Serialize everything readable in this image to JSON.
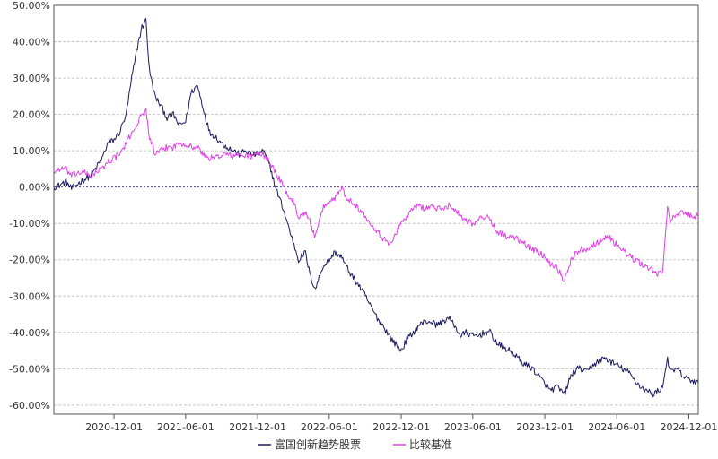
{
  "chart_data": {
    "type": "line",
    "grid": true,
    "legend_position": "bottom-center",
    "ylim": [
      -62.5,
      50
    ],
    "xlim": [
      "2020-07-01",
      "2024-12-25"
    ],
    "yticks": [
      50,
      40,
      30,
      20,
      10,
      0,
      -10,
      -20,
      -30,
      -40,
      -50,
      -60
    ],
    "ytick_labels": [
      "50.00%",
      "40.00%",
      "30.00%",
      "20.00%",
      "10.00%",
      "0.00%",
      "-10.00%",
      "-20.00%",
      "-30.00%",
      "-40.00%",
      "-50.00%",
      "-60.00%"
    ],
    "xticks": [
      "2020-12-01",
      "2021-06-01",
      "2021-12-01",
      "2022-06-01",
      "2022-12-01",
      "2023-06-01",
      "2023-12-01",
      "2024-06-01",
      "2024-12-01"
    ],
    "series": [
      {
        "name": "富国创新趋势股票",
        "color": "#1a1a5e",
        "points": [
          [
            "2020-07-01",
            0
          ],
          [
            "2020-07-15",
            0.5
          ],
          [
            "2020-08-01",
            1.5
          ],
          [
            "2020-08-15",
            -0.5
          ],
          [
            "2020-09-01",
            1
          ],
          [
            "2020-09-15",
            2
          ],
          [
            "2020-10-01",
            3
          ],
          [
            "2020-10-15",
            5
          ],
          [
            "2020-11-01",
            8
          ],
          [
            "2020-11-15",
            12
          ],
          [
            "2020-12-01",
            13
          ],
          [
            "2020-12-15",
            15
          ],
          [
            "2021-01-01",
            20
          ],
          [
            "2021-01-15",
            30
          ],
          [
            "2021-02-01",
            40
          ],
          [
            "2021-02-10",
            44
          ],
          [
            "2021-02-20",
            46
          ],
          [
            "2021-03-01",
            32
          ],
          [
            "2021-03-15",
            25
          ],
          [
            "2021-04-01",
            22
          ],
          [
            "2021-04-15",
            19
          ],
          [
            "2021-05-01",
            20
          ],
          [
            "2021-05-15",
            17
          ],
          [
            "2021-06-01",
            18
          ],
          [
            "2021-06-15",
            26
          ],
          [
            "2021-07-01",
            28
          ],
          [
            "2021-07-15",
            22
          ],
          [
            "2021-08-01",
            15
          ],
          [
            "2021-08-15",
            14
          ],
          [
            "2021-09-01",
            12
          ],
          [
            "2021-09-15",
            11
          ],
          [
            "2021-10-01",
            10
          ],
          [
            "2021-10-15",
            9
          ],
          [
            "2021-11-01",
            10
          ],
          [
            "2021-11-15",
            9
          ],
          [
            "2021-12-01",
            9
          ],
          [
            "2021-12-15",
            10
          ],
          [
            "2022-01-01",
            6
          ],
          [
            "2022-01-15",
            0
          ],
          [
            "2022-02-01",
            -5
          ],
          [
            "2022-02-15",
            -10
          ],
          [
            "2022-03-01",
            -15
          ],
          [
            "2022-03-15",
            -20
          ],
          [
            "2022-04-01",
            -18
          ],
          [
            "2022-04-15",
            -25
          ],
          [
            "2022-04-27",
            -28
          ],
          [
            "2022-05-15",
            -22
          ],
          [
            "2022-06-01",
            -20
          ],
          [
            "2022-06-15",
            -18
          ],
          [
            "2022-07-01",
            -19
          ],
          [
            "2022-07-15",
            -22
          ],
          [
            "2022-08-01",
            -25
          ],
          [
            "2022-08-15",
            -27
          ],
          [
            "2022-09-01",
            -30
          ],
          [
            "2022-09-15",
            -33
          ],
          [
            "2022-10-01",
            -36
          ],
          [
            "2022-10-15",
            -38
          ],
          [
            "2022-11-01",
            -41
          ],
          [
            "2022-11-15",
            -43
          ],
          [
            "2022-12-01",
            -45
          ],
          [
            "2022-12-15",
            -42
          ],
          [
            "2023-01-01",
            -40
          ],
          [
            "2023-01-15",
            -38
          ],
          [
            "2023-02-01",
            -37
          ],
          [
            "2023-02-15",
            -37
          ],
          [
            "2023-03-01",
            -38
          ],
          [
            "2023-03-15",
            -37
          ],
          [
            "2023-04-01",
            -36
          ],
          [
            "2023-04-15",
            -38
          ],
          [
            "2023-05-01",
            -41
          ],
          [
            "2023-05-15",
            -40
          ],
          [
            "2023-06-01",
            -41
          ],
          [
            "2023-06-15",
            -41
          ],
          [
            "2023-07-01",
            -40
          ],
          [
            "2023-07-15",
            -40
          ],
          [
            "2023-08-01",
            -43
          ],
          [
            "2023-08-15",
            -44
          ],
          [
            "2023-09-01",
            -45
          ],
          [
            "2023-09-15",
            -46
          ],
          [
            "2023-10-01",
            -48
          ],
          [
            "2023-10-15",
            -49
          ],
          [
            "2023-11-01",
            -50
          ],
          [
            "2023-11-15",
            -52
          ],
          [
            "2023-12-01",
            -54
          ],
          [
            "2023-12-15",
            -56
          ],
          [
            "2024-01-01",
            -55
          ],
          [
            "2024-01-20",
            -57
          ],
          [
            "2024-02-05",
            -52
          ],
          [
            "2024-02-20",
            -50
          ],
          [
            "2024-03-01",
            -50
          ],
          [
            "2024-03-15",
            -51
          ],
          [
            "2024-04-01",
            -49
          ],
          [
            "2024-04-15",
            -48
          ],
          [
            "2024-05-01",
            -47
          ],
          [
            "2024-05-15",
            -48
          ],
          [
            "2024-06-01",
            -49
          ],
          [
            "2024-06-15",
            -50
          ],
          [
            "2024-07-01",
            -51
          ],
          [
            "2024-07-15",
            -53
          ],
          [
            "2024-08-01",
            -55
          ],
          [
            "2024-08-15",
            -56
          ],
          [
            "2024-09-01",
            -57
          ],
          [
            "2024-09-15",
            -56
          ],
          [
            "2024-09-25",
            -55
          ],
          [
            "2024-10-08",
            -47
          ],
          [
            "2024-10-15",
            -51
          ],
          [
            "2024-11-01",
            -50
          ],
          [
            "2024-11-15",
            -52
          ],
          [
            "2024-12-01",
            -53
          ],
          [
            "2024-12-15",
            -53.5
          ],
          [
            "2024-12-25",
            -54
          ]
        ]
      },
      {
        "name": "比较基准",
        "color": "#e23ee8",
        "points": [
          [
            "2020-07-01",
            4
          ],
          [
            "2020-07-15",
            5
          ],
          [
            "2020-08-01",
            5
          ],
          [
            "2020-08-15",
            3
          ],
          [
            "2020-09-01",
            4
          ],
          [
            "2020-09-15",
            4
          ],
          [
            "2020-10-01",
            3
          ],
          [
            "2020-10-15",
            4
          ],
          [
            "2020-11-01",
            5
          ],
          [
            "2020-11-15",
            7
          ],
          [
            "2020-12-01",
            8
          ],
          [
            "2020-12-15",
            9
          ],
          [
            "2021-01-01",
            12
          ],
          [
            "2021-01-15",
            15
          ],
          [
            "2021-02-01",
            18
          ],
          [
            "2021-02-10",
            20
          ],
          [
            "2021-02-20",
            21
          ],
          [
            "2021-03-01",
            14
          ],
          [
            "2021-03-15",
            9
          ],
          [
            "2021-04-01",
            10
          ],
          [
            "2021-04-15",
            11
          ],
          [
            "2021-05-01",
            11
          ],
          [
            "2021-05-15",
            12
          ],
          [
            "2021-06-01",
            12
          ],
          [
            "2021-06-15",
            11
          ],
          [
            "2021-07-01",
            11
          ],
          [
            "2021-07-15",
            9
          ],
          [
            "2021-08-01",
            8
          ],
          [
            "2021-08-15",
            8
          ],
          [
            "2021-09-01",
            9
          ],
          [
            "2021-09-15",
            9
          ],
          [
            "2021-10-01",
            8.5
          ],
          [
            "2021-10-15",
            9
          ],
          [
            "2021-11-01",
            8.5
          ],
          [
            "2021-11-15",
            8.5
          ],
          [
            "2021-12-01",
            9
          ],
          [
            "2021-12-15",
            9
          ],
          [
            "2022-01-01",
            7
          ],
          [
            "2022-01-15",
            4
          ],
          [
            "2022-02-01",
            1
          ],
          [
            "2022-02-15",
            -2
          ],
          [
            "2022-03-01",
            -4
          ],
          [
            "2022-03-15",
            -8
          ],
          [
            "2022-04-01",
            -7
          ],
          [
            "2022-04-15",
            -10
          ],
          [
            "2022-04-27",
            -14
          ],
          [
            "2022-05-15",
            -6
          ],
          [
            "2022-06-01",
            -4
          ],
          [
            "2022-06-15",
            -3
          ],
          [
            "2022-07-01",
            0
          ],
          [
            "2022-07-15",
            -3
          ],
          [
            "2022-08-01",
            -4
          ],
          [
            "2022-08-15",
            -6
          ],
          [
            "2022-09-01",
            -8
          ],
          [
            "2022-09-15",
            -10
          ],
          [
            "2022-10-01",
            -12
          ],
          [
            "2022-10-15",
            -14
          ],
          [
            "2022-11-01",
            -16
          ],
          [
            "2022-11-15",
            -13
          ],
          [
            "2022-12-01",
            -10
          ],
          [
            "2022-12-15",
            -8
          ],
          [
            "2023-01-01",
            -6
          ],
          [
            "2023-01-15",
            -5
          ],
          [
            "2023-02-01",
            -6
          ],
          [
            "2023-02-15",
            -5
          ],
          [
            "2023-03-01",
            -6
          ],
          [
            "2023-03-15",
            -6
          ],
          [
            "2023-04-01",
            -5
          ],
          [
            "2023-04-15",
            -6
          ],
          [
            "2023-05-01",
            -8
          ],
          [
            "2023-05-15",
            -9
          ],
          [
            "2023-06-01",
            -10
          ],
          [
            "2023-06-15",
            -9
          ],
          [
            "2023-07-01",
            -8
          ],
          [
            "2023-07-15",
            -9
          ],
          [
            "2023-08-01",
            -12
          ],
          [
            "2023-08-15",
            -13
          ],
          [
            "2023-09-01",
            -14
          ],
          [
            "2023-09-15",
            -14
          ],
          [
            "2023-10-01",
            -15
          ],
          [
            "2023-10-15",
            -16
          ],
          [
            "2023-11-01",
            -17
          ],
          [
            "2023-11-15",
            -18
          ],
          [
            "2023-12-01",
            -19
          ],
          [
            "2023-12-15",
            -21
          ],
          [
            "2024-01-01",
            -22
          ],
          [
            "2024-01-20",
            -26
          ],
          [
            "2024-02-05",
            -20
          ],
          [
            "2024-02-20",
            -18
          ],
          [
            "2024-03-01",
            -17
          ],
          [
            "2024-03-15",
            -17
          ],
          [
            "2024-04-01",
            -16
          ],
          [
            "2024-04-15",
            -15
          ],
          [
            "2024-05-01",
            -14
          ],
          [
            "2024-05-15",
            -14
          ],
          [
            "2024-06-01",
            -16
          ],
          [
            "2024-06-15",
            -17
          ],
          [
            "2024-07-01",
            -19
          ],
          [
            "2024-07-15",
            -20
          ],
          [
            "2024-08-01",
            -21
          ],
          [
            "2024-08-15",
            -22
          ],
          [
            "2024-09-01",
            -23
          ],
          [
            "2024-09-15",
            -24
          ],
          [
            "2024-09-25",
            -24
          ],
          [
            "2024-10-08",
            -5
          ],
          [
            "2024-10-15",
            -9
          ],
          [
            "2024-11-01",
            -8
          ],
          [
            "2024-11-15",
            -7
          ],
          [
            "2024-12-01",
            -7.5
          ],
          [
            "2024-12-15",
            -8
          ],
          [
            "2024-12-25",
            -7.5
          ]
        ]
      }
    ]
  }
}
